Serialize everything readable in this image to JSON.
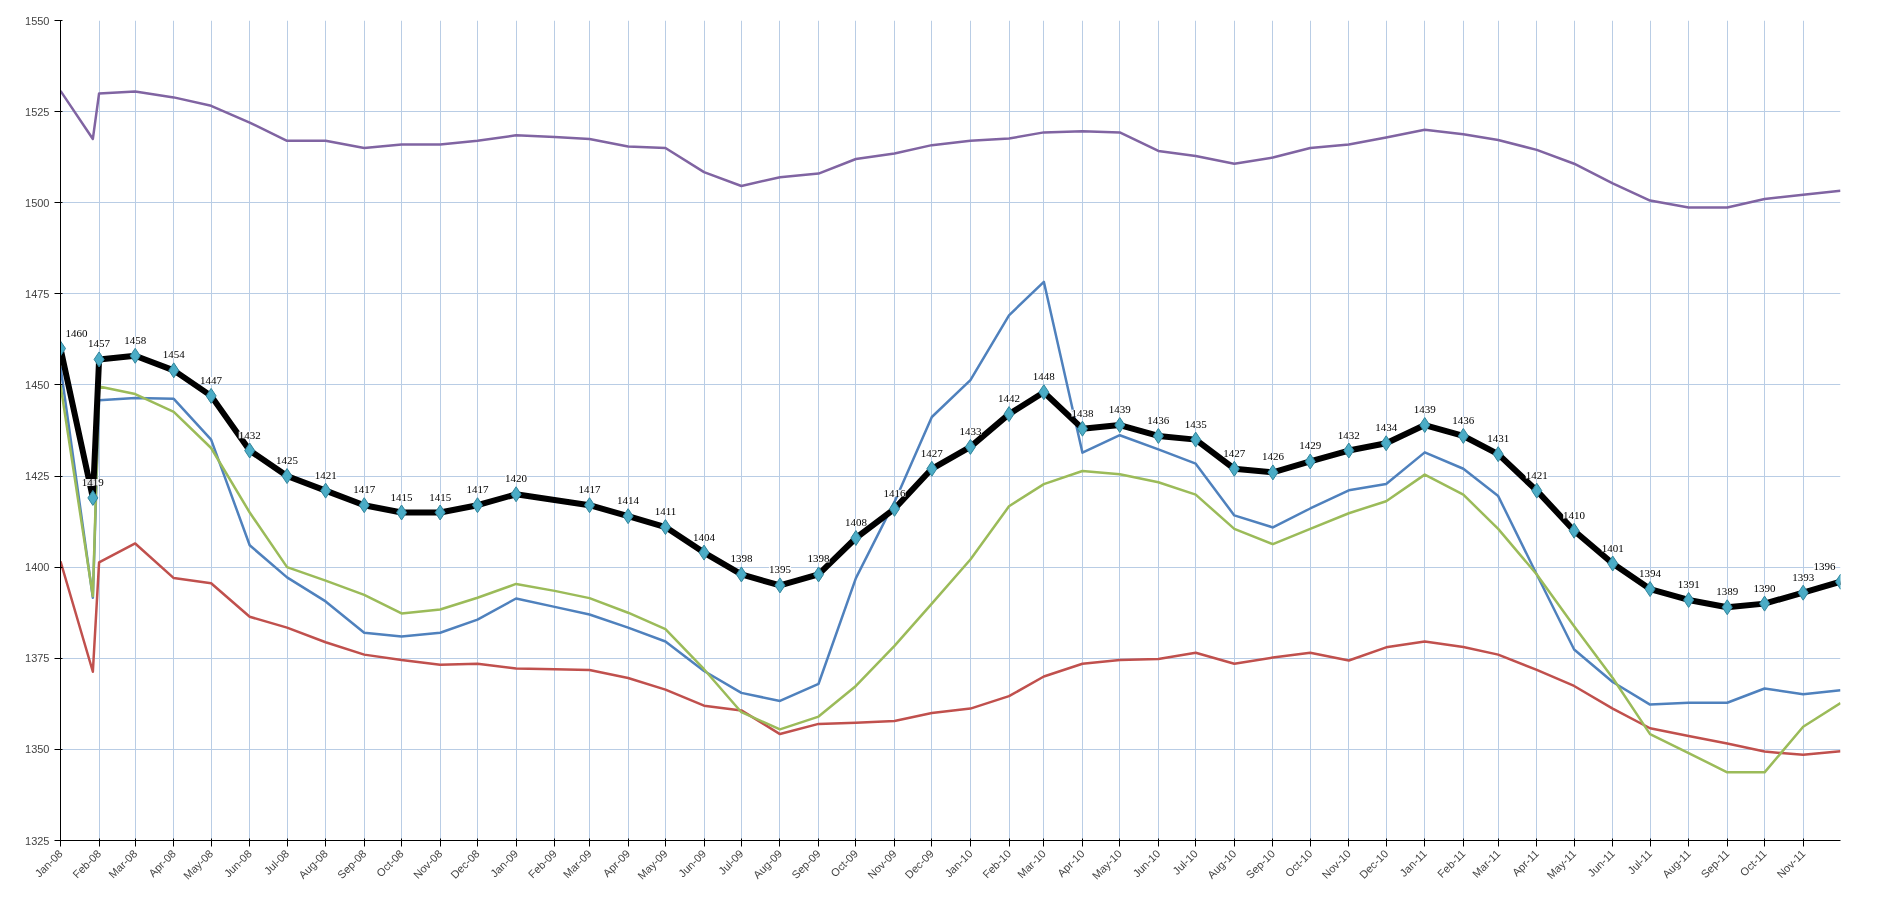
{
  "chart_data": {
    "type": "line",
    "xlim": [
      "2008-01-01",
      "2011-12-01"
    ],
    "ylim": [
      1325,
      1550
    ],
    "yticks": [
      1325,
      1350,
      1375,
      1400,
      1425,
      1450,
      1475,
      1500,
      1525,
      1550
    ],
    "xticks": [
      {
        "value": "2008-01-01",
        "label": "Jan-08"
      },
      {
        "value": "2008-02-01",
        "label": "Feb-08"
      },
      {
        "value": "2008-03-01",
        "label": "Mar-08"
      },
      {
        "value": "2008-04-01",
        "label": "Apr-08"
      },
      {
        "value": "2008-05-01",
        "label": "May-08"
      },
      {
        "value": "2008-06-01",
        "label": "Jun-08"
      },
      {
        "value": "2008-07-01",
        "label": "Jul-08"
      },
      {
        "value": "2008-08-01",
        "label": "Aug-08"
      },
      {
        "value": "2008-09-01",
        "label": "Sep-08"
      },
      {
        "value": "2008-10-01",
        "label": "Oct-08"
      },
      {
        "value": "2008-11-01",
        "label": "Nov-08"
      },
      {
        "value": "2008-12-01",
        "label": "Dec-08"
      },
      {
        "value": "2009-01-01",
        "label": "Jan-09"
      },
      {
        "value": "2009-02-01",
        "label": "Feb-09"
      },
      {
        "value": "2009-03-01",
        "label": "Mar-09"
      },
      {
        "value": "2009-04-01",
        "label": "Apr-09"
      },
      {
        "value": "2009-05-01",
        "label": "May-09"
      },
      {
        "value": "2009-06-01",
        "label": "Jun-09"
      },
      {
        "value": "2009-07-01",
        "label": "Jul-09"
      },
      {
        "value": "2009-08-01",
        "label": "Aug-09"
      },
      {
        "value": "2009-09-01",
        "label": "Sep-09"
      },
      {
        "value": "2009-10-01",
        "label": "Oct-09"
      },
      {
        "value": "2009-11-01",
        "label": "Nov-09"
      },
      {
        "value": "2009-12-01",
        "label": "Dec-09"
      },
      {
        "value": "2010-01-01",
        "label": "Jan-10"
      },
      {
        "value": "2010-02-01",
        "label": "Feb-10"
      },
      {
        "value": "2010-03-01",
        "label": "Mar-10"
      },
      {
        "value": "2010-04-01",
        "label": "Apr-10"
      },
      {
        "value": "2010-05-01",
        "label": "May-10"
      },
      {
        "value": "2010-06-01",
        "label": "Jun-10"
      },
      {
        "value": "2010-07-01",
        "label": "Jul-10"
      },
      {
        "value": "2010-08-01",
        "label": "Aug-10"
      },
      {
        "value": "2010-09-01",
        "label": "Sep-10"
      },
      {
        "value": "2010-10-01",
        "label": "Oct-10"
      },
      {
        "value": "2010-11-01",
        "label": "Nov-10"
      },
      {
        "value": "2010-12-01",
        "label": "Dec-10"
      },
      {
        "value": "2011-01-01",
        "label": "Jan-11"
      },
      {
        "value": "2011-02-01",
        "label": "Feb-11"
      },
      {
        "value": "2011-03-01",
        "label": "Mar-11"
      },
      {
        "value": "2011-04-01",
        "label": "Apr-11"
      },
      {
        "value": "2011-05-01",
        "label": "May-11"
      },
      {
        "value": "2011-06-01",
        "label": "Jun-11"
      },
      {
        "value": "2011-07-01",
        "label": "Jul-11"
      },
      {
        "value": "2011-08-01",
        "label": "Aug-11"
      },
      {
        "value": "2011-09-01",
        "label": "Sep-11"
      },
      {
        "value": "2011-10-01",
        "label": "Oct-11"
      },
      {
        "value": "2011-11-01",
        "label": "Nov-11"
      }
    ],
    "x": [
      "2008-01-01",
      "2008-01-27",
      "2008-02-01",
      "2008-03-01",
      "2008-04-01",
      "2008-05-01",
      "2008-06-01",
      "2008-07-01",
      "2008-08-01",
      "2008-09-01",
      "2008-10-01",
      "2008-11-01",
      "2008-12-01",
      "2009-01-01",
      "2009-02-01",
      "2009-03-01",
      "2009-04-01",
      "2009-05-01",
      "2009-06-01",
      "2009-07-01",
      "2009-08-01",
      "2009-09-01",
      "2009-10-01",
      "2009-11-01",
      "2009-12-01",
      "2010-01-01",
      "2010-02-01",
      "2010-03-01",
      "2010-04-01",
      "2010-05-01",
      "2010-06-01",
      "2010-07-01",
      "2010-08-01",
      "2010-09-01",
      "2010-10-01",
      "2010-11-01",
      "2010-12-01",
      "2011-01-01",
      "2011-02-01",
      "2011-03-01",
      "2011-04-01",
      "2011-05-01",
      "2011-06-01",
      "2011-07-01",
      "2011-08-01",
      "2011-09-01",
      "2011-10-01",
      "2011-11-01",
      "2011-12-01"
    ],
    "grid": true,
    "line_style": "solid",
    "marker": "none",
    "series": [
      {
        "color": "#8064a2",
        "values": [
          1530.7,
          1517.5,
          1530,
          1530.5,
          1528.9,
          1526.6,
          1522,
          1517,
          1517,
          1515,
          1516,
          1516,
          1517,
          1518.5,
          1518,
          1517.5,
          1515.4,
          1515,
          1508.4,
          1504.6,
          1507,
          1508,
          1512,
          1513.5,
          1515.8,
          1517,
          1517.6,
          1519.3,
          1519.6,
          1519.3,
          1514.2,
          1512.8,
          1510.7,
          1512.4,
          1515,
          1516,
          1517.9,
          1520,
          1518.8,
          1517.2,
          1514.5,
          1510.7,
          1505.3,
          1500.6,
          1498.7,
          1498.7,
          1501,
          1502.2,
          1503.3
        ]
      },
      {
        "color": "#c0504d",
        "values": [
          1401.6,
          1371.3,
          1401.3,
          1406.5,
          1397,
          1395.6,
          1386.4,
          1383.4,
          1379.4,
          1376,
          1374.5,
          1373.2,
          1373.5,
          1372.2,
          1372,
          1371.8,
          1369.6,
          1366.4,
          1362,
          1360.7,
          1354.2,
          1357,
          1357.3,
          1357.8,
          1360,
          1361.2,
          1364.6,
          1370,
          1373.5,
          1374.5,
          1374.8,
          1376.5,
          1373.5,
          1375.2,
          1376.5,
          1374.4,
          1378,
          1379.6,
          1378.1,
          1376,
          1371.8,
          1367.4,
          1361.2,
          1355.8,
          1353.7,
          1351.6,
          1349.4,
          1348.5,
          1349.5
        ]
      },
      {
        "color": "#4f81bd",
        "values": [
          1455,
          1391.6,
          1445.8,
          1446.4,
          1446.2,
          1435,
          1406,
          1397.2,
          1390.6,
          1382,
          1381,
          1382,
          1385.6,
          1391.4,
          1389.1,
          1387,
          1383.4,
          1379.6,
          1371.5,
          1365.5,
          1363.3,
          1368,
          1397,
          1417.9,
          1441.2,
          1451.3,
          1469.1,
          1478.3,
          1431.4,
          1436.2,
          1432.3,
          1428.4,
          1414.2,
          1410.9,
          1416.1,
          1421.1,
          1422.8,
          1431.5,
          1427,
          1419.5,
          1398,
          1377.4,
          1368.5,
          1362.3,
          1362.8,
          1362.8,
          1366.7,
          1365.1,
          1366.2
        ]
      },
      {
        "color": "#9bbb59",
        "values": [
          1450,
          1392,
          1449.6,
          1447.5,
          1442.6,
          1432.7,
          1415,
          1400,
          1396.3,
          1392.4,
          1387.3,
          1388.4,
          1391.6,
          1395.4,
          1393.5,
          1391.5,
          1387.5,
          1383,
          1372,
          1360.2,
          1355.5,
          1359,
          1367.4,
          1378.4,
          1390,
          1402.1,
          1416.7,
          1422.8,
          1426.4,
          1425.5,
          1423.3,
          1419.9,
          1410.5,
          1406.3,
          1410.5,
          1414.8,
          1418.1,
          1425.4,
          1419.9,
          1410.5,
          1398,
          1383.8,
          1369.6,
          1354.2,
          1349,
          1343.7,
          1343.7,
          1356.2,
          1362.7
        ]
      },
      {
        "color": "#000000",
        "marker": "diamond",
        "x": [
          "2008-01-01",
          "2008-01-27",
          "2008-02-01",
          "2008-03-01",
          "2008-04-01",
          "2008-05-01",
          "2008-06-01",
          "2008-07-01",
          "2008-08-01",
          "2008-09-01",
          "2008-10-01",
          "2008-11-01",
          "2008-12-01",
          "2009-01-01",
          "2009-03-01",
          "2009-04-01",
          "2009-05-01",
          "2009-06-01",
          "2009-07-01",
          "2009-08-01",
          "2009-09-01",
          "2009-10-01",
          "2009-11-01",
          "2009-12-01",
          "2010-01-01",
          "2010-02-01",
          "2010-03-01",
          "2010-04-01",
          "2010-05-01",
          "2010-06-01",
          "2010-07-01",
          "2010-08-01",
          "2010-09-01",
          "2010-10-01",
          "2010-11-01",
          "2010-12-01",
          "2011-01-01",
          "2011-02-01",
          "2011-03-01",
          "2011-04-01",
          "2011-05-01",
          "2011-06-01",
          "2011-07-01",
          "2011-08-01",
          "2011-09-01",
          "2011-10-01",
          "2011-11-01",
          "2011-12-01"
        ],
        "values": [
          1460,
          1419,
          1457,
          1458,
          1454,
          1447,
          1432,
          1425,
          1421,
          1417,
          1415,
          1415,
          1417,
          1420,
          1417,
          1414,
          1411,
          1404,
          1398,
          1395,
          1398,
          1408,
          1416,
          1427,
          1433,
          1442,
          1448,
          1438,
          1439,
          1436,
          1435,
          1427,
          1426,
          1429,
          1432,
          1434,
          1439,
          1436,
          1431,
          1421,
          1410,
          1401,
          1394,
          1391,
          1389,
          1390,
          1393,
          1396
        ],
        "value_labels": [
          "1460",
          "1419",
          "1457",
          "1458",
          "1454",
          "1447",
          "1432",
          "1425",
          "1421",
          "1417",
          "1415",
          "1415",
          "1417",
          "1420",
          "1417",
          "1414",
          "1411",
          "1404",
          "1398",
          "1395",
          "1398",
          "1408",
          "1416",
          "1427",
          "1433",
          "1442",
          "1448",
          "1438",
          "1439",
          "1436",
          "1435",
          "1427",
          "1426",
          "1429",
          "1432",
          "1434",
          "1439",
          "1436",
          "1431",
          "1421",
          "1410",
          "1401",
          "1394",
          "1391",
          "1389",
          "1390",
          "1393",
          "1396"
        ]
      }
    ]
  }
}
